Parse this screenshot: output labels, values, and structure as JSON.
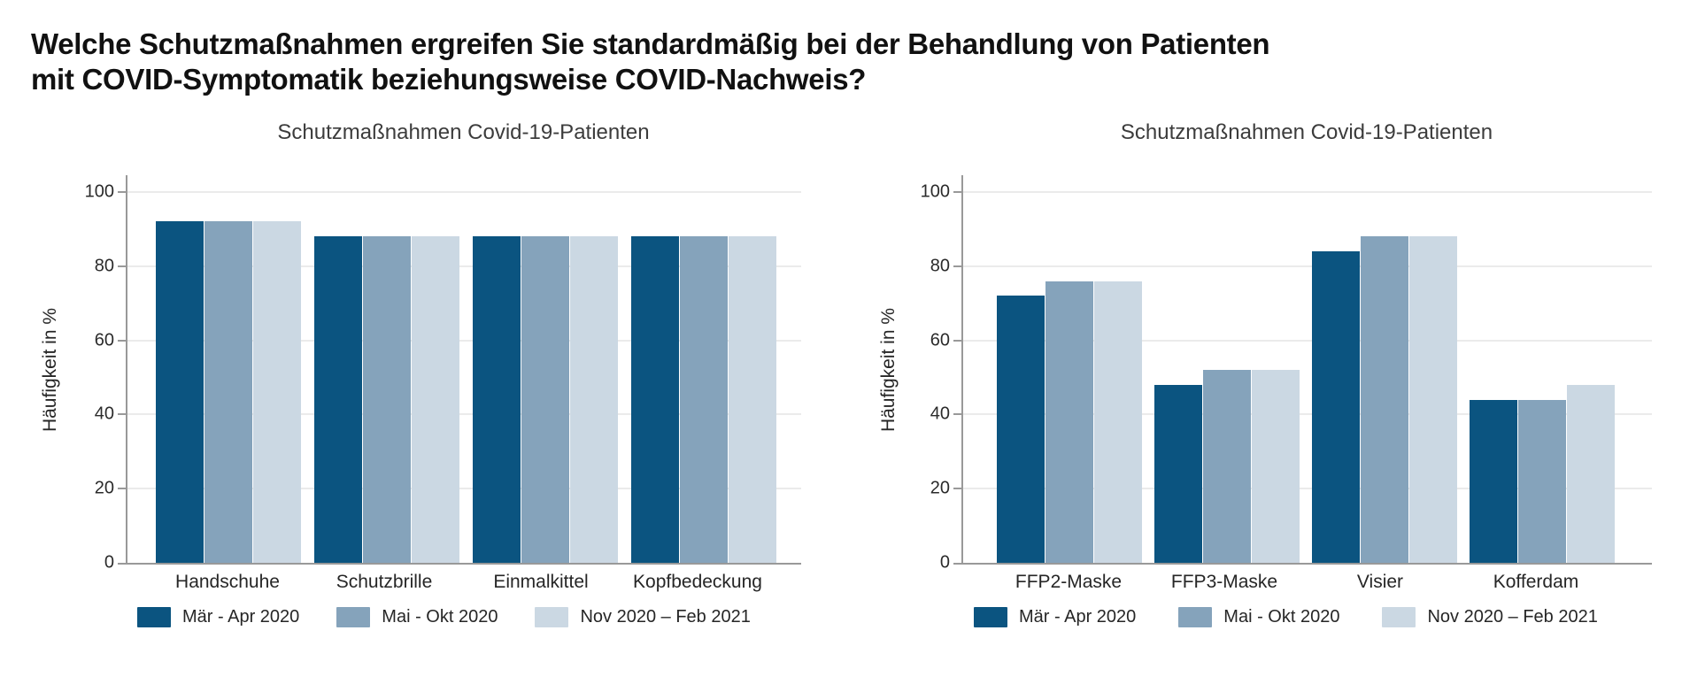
{
  "heading": {
    "line1": "Welche Schutzmaßnahmen ergreifen Sie standardmäßig bei der Behandlung von Patienten",
    "line2": "mit COVID-Symptomatik beziehungsweise COVID-Nachweis?"
  },
  "colors": {
    "series_dark": "#0b5480",
    "series_mid": "#85a3bb",
    "series_light": "#cbd8e3",
    "axis": "#999999",
    "grid": "#ebebeb",
    "text": "#262626"
  },
  "chart_data": [
    {
      "type": "bar",
      "title": "Schutzmaßnahmen Covid-19-Patienten",
      "xlabel": "",
      "ylabel": "Häufigkeit in %",
      "ylim": [
        0,
        100
      ],
      "yticks": [
        0,
        20,
        40,
        60,
        80,
        100
      ],
      "grid": "horizontal",
      "legend_position": "bottom",
      "categories": [
        "Handschuhe",
        "Schutzbrille",
        "Einmalkittel",
        "Kopfbedeckung"
      ],
      "series": [
        {
          "name": "Mär - Apr 2020",
          "color": "#0b5480",
          "values": [
            92,
            88,
            88,
            88
          ]
        },
        {
          "name": "Mai - Okt 2020",
          "color": "#85a3bb",
          "values": [
            92,
            88,
            88,
            88
          ]
        },
        {
          "name": "Nov 2020 – Feb 2021",
          "color": "#cbd8e3",
          "values": [
            92,
            88,
            88,
            88
          ]
        }
      ]
    },
    {
      "type": "bar",
      "title": "Schutzmaßnahmen Covid-19-Patienten",
      "xlabel": "",
      "ylabel": "Häufigkeit in %",
      "ylim": [
        0,
        100
      ],
      "yticks": [
        0,
        20,
        40,
        60,
        80,
        100
      ],
      "grid": "horizontal",
      "legend_position": "bottom",
      "categories": [
        "FFP2-Maske",
        "FFP3-Maske",
        "Visier",
        "Kofferdam"
      ],
      "series": [
        {
          "name": "Mär - Apr 2020",
          "color": "#0b5480",
          "values": [
            72,
            48,
            84,
            44
          ]
        },
        {
          "name": "Mai - Okt 2020",
          "color": "#85a3bb",
          "values": [
            76,
            52,
            88,
            44
          ]
        },
        {
          "name": "Nov 2020 – Feb 2021",
          "color": "#cbd8e3",
          "values": [
            76,
            52,
            88,
            48
          ]
        }
      ]
    }
  ]
}
